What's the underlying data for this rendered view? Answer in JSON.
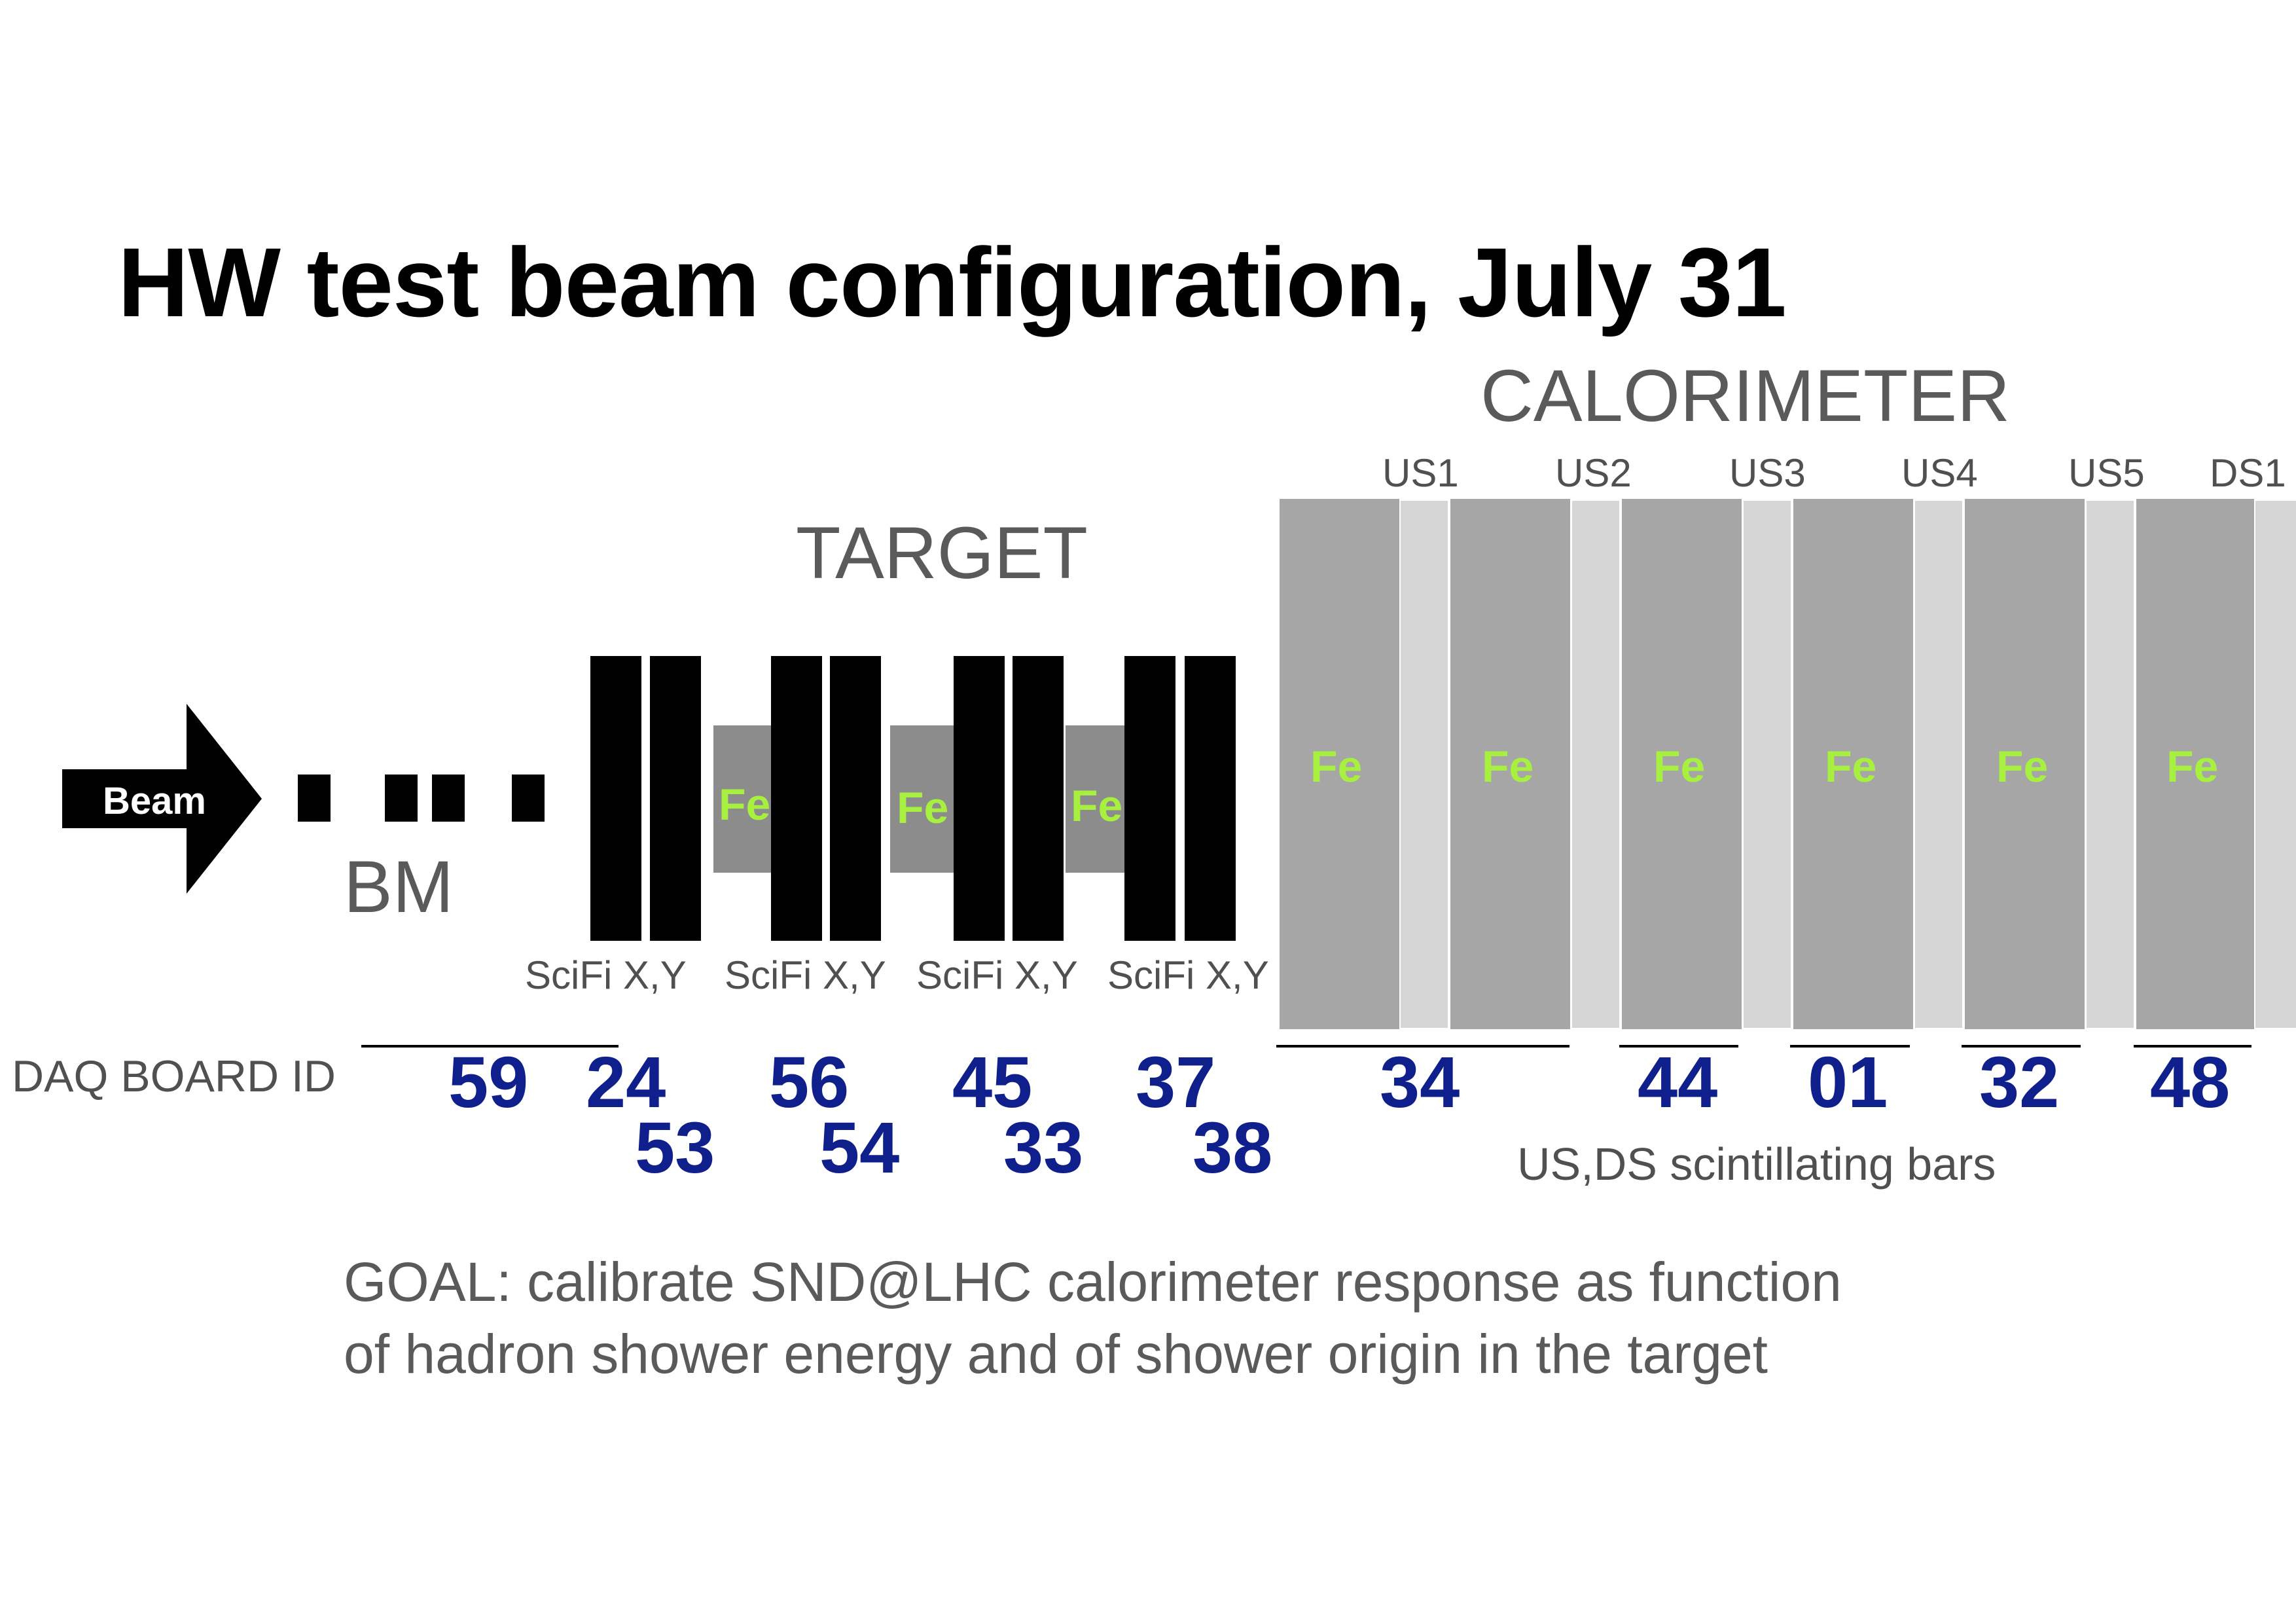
{
  "title": "HW test beam configuration,  July 31",
  "sections": {
    "calorimeter": "CALORIMETER",
    "target": "TARGET",
    "bm": "BM"
  },
  "beam_label": "Beam",
  "planes": [
    "US1",
    "US2",
    "US3",
    "US4",
    "US5",
    "DS1"
  ],
  "fe_label": "Fe",
  "scifi_label": "SciFi X,Y",
  "daq_label": "DAQ BOARD ID",
  "boards": {
    "bm": "59",
    "scifi_top": [
      "24",
      "56",
      "45",
      "37"
    ],
    "scifi_bottom": [
      "53",
      "54",
      "33",
      "38"
    ],
    "calo": [
      "34",
      "44",
      "01",
      "32",
      "48"
    ]
  },
  "bars_label": "US,DS scintillating bars",
  "goal": {
    "line1": "GOAL: calibrate SND@LHC calorimeter response as function",
    "line2": "of hadron shower energy and of shower origin in the target"
  },
  "colors": {
    "board_ids": "#0f1f8c",
    "fe_text": "#a8f040",
    "scifi_planes": "#000000",
    "target_fe": "#8c8c8c",
    "calo_fe": "#a6a6a6",
    "scintillator": "#d6d6d6"
  }
}
